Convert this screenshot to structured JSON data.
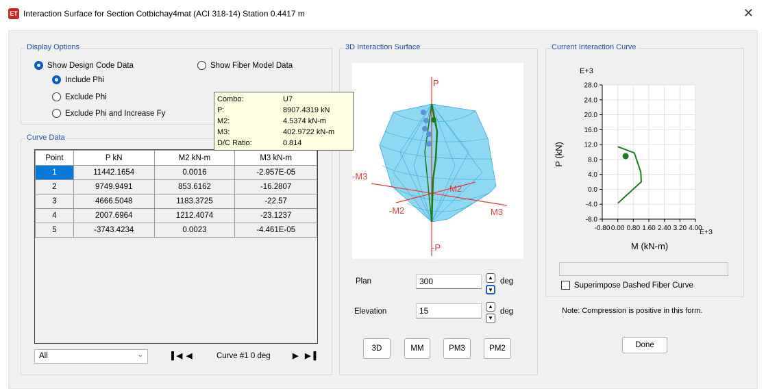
{
  "window": {
    "title": "Interaction Surface for Section Cotbichay4mat (ACI 318-14)  Station 0.4417 m",
    "app_icon_text": "ET",
    "close_glyph": "✕"
  },
  "display_options": {
    "group_label": "Display Options",
    "show_design_code": "Show Design Code Data",
    "show_fiber_model": "Show Fiber Model Data",
    "include_phi": "Include Phi",
    "exclude_phi": "Exclude Phi",
    "exclude_phi_fy": "Exclude Phi and Increase Fy"
  },
  "tooltip": {
    "rows": [
      {
        "key": "Combo:",
        "value": "U7"
      },
      {
        "key": "P:",
        "value": "8907.4319 kN"
      },
      {
        "key": "M2:",
        "value": "4.5374 kN-m"
      },
      {
        "key": "M3:",
        "value": "402.9722 kN-m"
      },
      {
        "key": "D/C Ratio:",
        "value": "0.814"
      }
    ]
  },
  "curve_data": {
    "group_label": "Curve Data",
    "columns": [
      "Point",
      "P  kN",
      "M2  kN-m",
      "M3  kN-m"
    ],
    "rows": [
      [
        "1",
        "11442.1654",
        "0.0016",
        "-2.957E-05"
      ],
      [
        "2",
        "9749.9491",
        "853.6162",
        "-16.2807"
      ],
      [
        "3",
        "4666.5048",
        "1183.3725",
        "-22.57"
      ],
      [
        "4",
        "2007.6964",
        "1212.4074",
        "-23.1237"
      ],
      [
        "5",
        "-3743.4234",
        "0.0023",
        "-4.461E-05"
      ]
    ],
    "filter_value": "All",
    "curve_label": "Curve #1  0 deg"
  },
  "surface3d": {
    "group_label": "3D Interaction Surface",
    "axis_p": "P",
    "axis_neg_p": "-P",
    "axis_m3": "M3",
    "axis_neg_m3": "-M3",
    "axis_m2": "M2",
    "axis_neg_m2": "-M2",
    "plan_label": "Plan",
    "plan_value": "300",
    "elevation_label": "Elevation",
    "elevation_value": "15",
    "deg_label": "deg",
    "buttons": [
      "3D",
      "MM",
      "PM3",
      "PM2"
    ]
  },
  "current_curve": {
    "group_label": "Current Interaction Curve",
    "y_exponent": "E+3",
    "x_exponent": "E+3",
    "y_axis_label": "P (kN)",
    "x_axis_label": "M (kN-m)",
    "superimpose_label": "Superimpose Dashed Fiber Curve",
    "note": "Note:  Compression is positive in this form.",
    "done_label": "Done"
  },
  "chart_data": {
    "type": "line",
    "title": "",
    "xlabel": "M (kN-m)",
    "ylabel": "P (kN)",
    "x_tick_labels": [
      "-0.80",
      "0.00",
      "0.80",
      "1.60",
      "2.40",
      "3.20",
      "4.00"
    ],
    "y_tick_labels": [
      "28.0",
      "24.0",
      "20.0",
      "16.0",
      "12.0",
      "8.0",
      "4.0",
      "0.0",
      "-4.0",
      "-8.0"
    ],
    "xlim": [
      -0.8,
      4.0
    ],
    "ylim": [
      -8.0,
      28.0
    ],
    "grid": true,
    "series": [
      {
        "x": [
          0.0016,
          0.8536,
          1.1834,
          1.2124,
          0.0023
        ],
        "y": [
          11.442,
          9.75,
          4.667,
          2.008,
          -3.743
        ],
        "color": "#1f7a1f"
      }
    ],
    "point": {
      "x": 0.403,
      "y": 8.907,
      "color": "#1f7a1f"
    }
  }
}
